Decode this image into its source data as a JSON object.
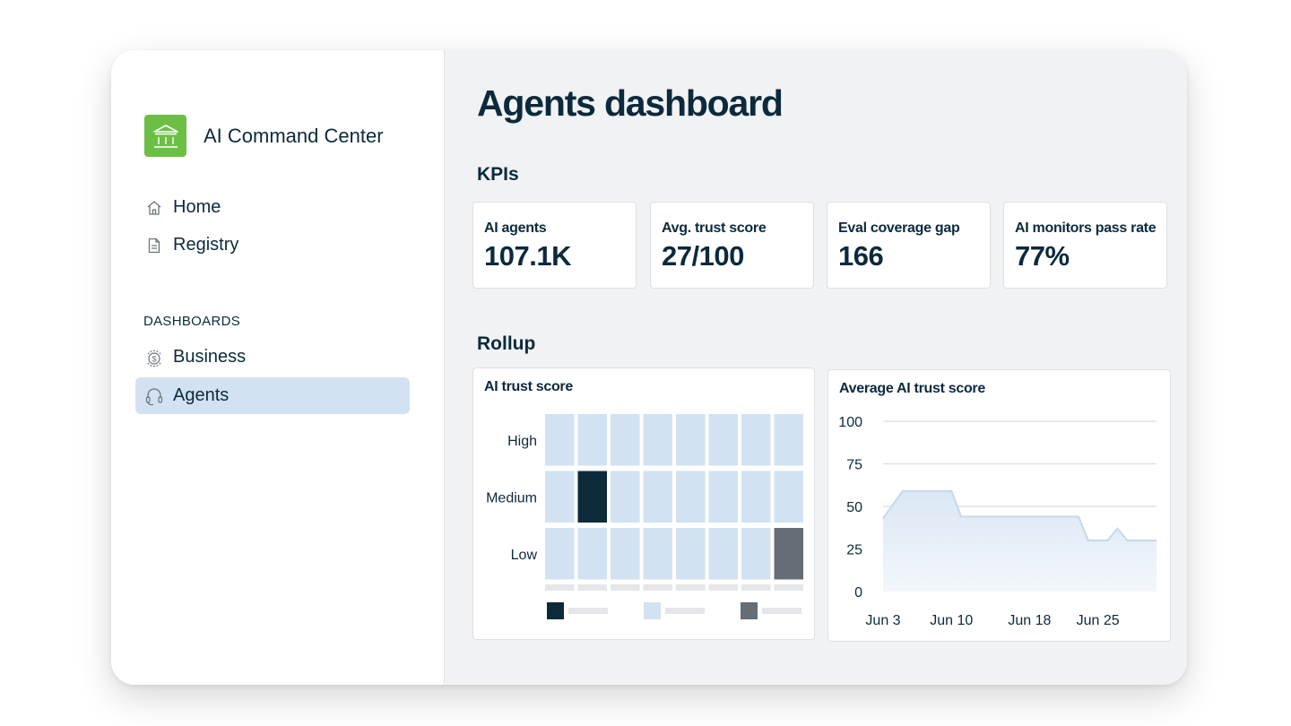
{
  "app": {
    "name": "AI Command Center",
    "logo_color": "#6cbf45"
  },
  "sidebar": {
    "items": [
      {
        "label": "Home",
        "icon": "home-icon"
      },
      {
        "label": "Registry",
        "icon": "document-icon"
      }
    ],
    "section_label": "DASHBOARDS",
    "dashboards": [
      {
        "label": "Business",
        "icon": "money-cycle-icon",
        "active": false
      },
      {
        "label": "Agents",
        "icon": "headset-icon",
        "active": true
      }
    ]
  },
  "page": {
    "title": "Agents dashboard",
    "kpis_heading": "KPIs",
    "rollup_heading": "Rollup"
  },
  "kpis": [
    {
      "label": "AI agents",
      "value": "107.1K"
    },
    {
      "label": "Avg. trust score",
      "value": "27/100"
    },
    {
      "label": "Eval coverage gap",
      "value": "166"
    },
    {
      "label": "AI monitors pass rate",
      "value": "77%"
    }
  ],
  "colors": {
    "accent_active": "#d2e2f2",
    "cell_default": "#d2e2f2",
    "cell_dark": "#0d2a3b",
    "cell_gray": "#646e74",
    "text": "#0b2a3c"
  },
  "chart_data": [
    {
      "type": "heatmap",
      "title": "AI trust score",
      "rows": [
        "High",
        "Medium",
        "Low"
      ],
      "columns": 8,
      "highlights": [
        {
          "row": "Medium",
          "column": 2,
          "level": "dark"
        },
        {
          "row": "Low",
          "column": 8,
          "level": "gray"
        }
      ],
      "legend": [
        "dark",
        "light",
        "gray"
      ]
    },
    {
      "type": "area",
      "title": "Average AI trust score",
      "x_ticks": [
        "Jun 3",
        "Jun 10",
        "Jun 18",
        "Jun 25"
      ],
      "y_ticks": [
        0,
        25,
        50,
        75,
        100
      ],
      "ylim": [
        0,
        100
      ],
      "grid": true,
      "points": [
        {
          "x": "Jun 3",
          "y": 43
        },
        {
          "x": "Jun 5",
          "y": 59
        },
        {
          "x": "Jun 10",
          "y": 59
        },
        {
          "x": "Jun 11",
          "y": 44
        },
        {
          "x": "Jun 23",
          "y": 44
        },
        {
          "x": "Jun 24",
          "y": 30
        },
        {
          "x": "Jun 26",
          "y": 30
        },
        {
          "x": "Jun 27",
          "y": 37
        },
        {
          "x": "Jun 28",
          "y": 30
        },
        {
          "x": "Jul 1",
          "y": 30
        }
      ]
    }
  ]
}
